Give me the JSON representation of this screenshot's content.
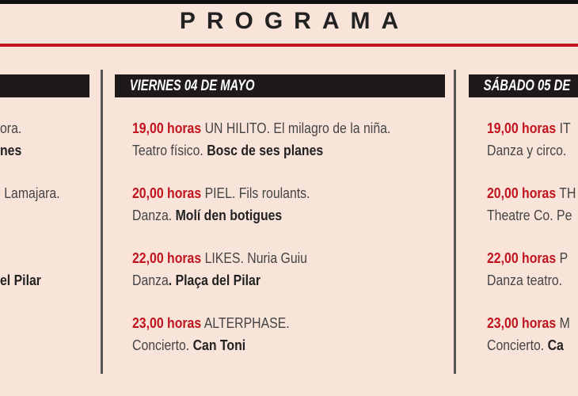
{
  "title": "PROGRAMA",
  "colors": {
    "accent": "#c0141f",
    "background": "#f9e4da",
    "header_bg": "#1e1a1a"
  },
  "left_column": {
    "fragments": [
      {
        "text": "ora.",
        "bold": false
      },
      {
        "text": "nes",
        "bold": true
      },
      {
        "text": "o Lamajara.",
        "bold": false
      },
      {
        "text": "el Pilar",
        "bold": true
      }
    ]
  },
  "middle_column": {
    "day": "VIERNES 04 DE MAYO",
    "events": [
      {
        "time": "19,00 horas",
        "title": " UN HILITO. El milagro de la niña.",
        "genre": "Teatro físico. ",
        "venue": "Bosc de ses planes"
      },
      {
        "time": "20,00 horas",
        "title": " PIEL. Fils roulants.",
        "genre": "Danza. ",
        "venue": "Molí den botigues"
      },
      {
        "time": "22,00 horas",
        "title": " LIKES. Nuria Guiu",
        "genre": "Danza",
        "venue": ". Plaça del Pilar"
      },
      {
        "time": "23,00 horas",
        "title": " ALTERPHASE.",
        "genre": "Concierto. ",
        "venue": "Can Toni"
      }
    ]
  },
  "right_column": {
    "day": "SÁBADO 05 DE",
    "events": [
      {
        "time": "19,00 horas",
        "title": " IT",
        "genre": "Danza y circo.",
        "venue": ""
      },
      {
        "time": "20,00 horas",
        "title": " TH",
        "genre": "Theatre Co. Pe",
        "venue": ""
      },
      {
        "time": "22,00 horas",
        "title": " P",
        "genre": "Danza teatro. ",
        "venue": ""
      },
      {
        "time": "23,00 horas",
        "title": " M",
        "genre": "Concierto. ",
        "venue": "Ca"
      }
    ]
  }
}
